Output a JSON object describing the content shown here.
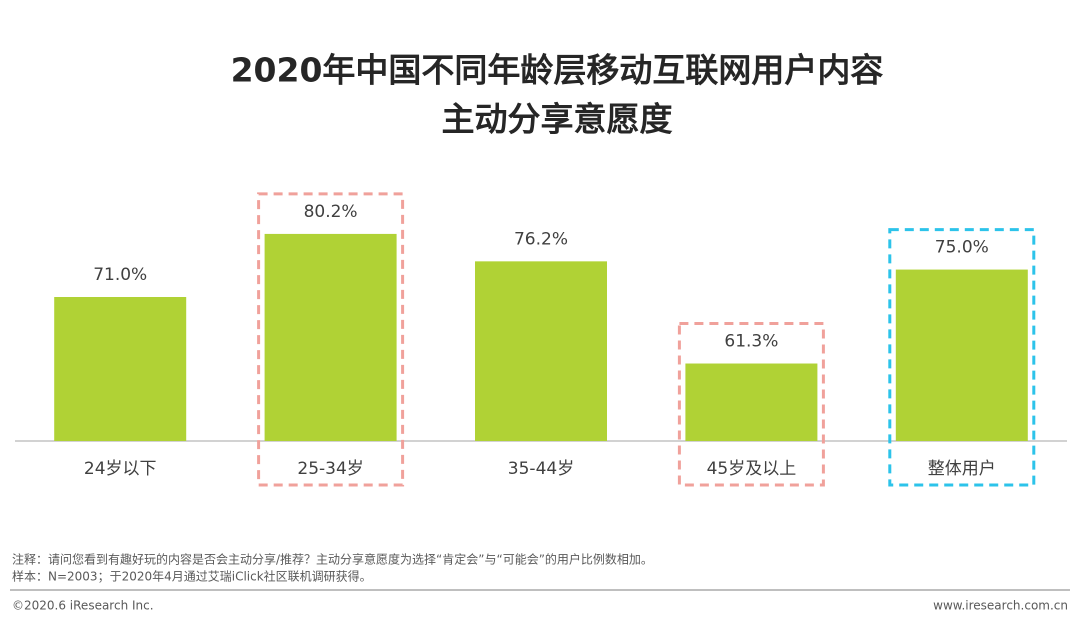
{
  "chart_data": {
    "type": "bar",
    "title": [
      "2020年中国不同年龄层移动互联网用户内容",
      "主动分享意愿度"
    ],
    "categories": [
      "24岁以下",
      "25-34岁",
      "35-44岁",
      "45岁及以上",
      "整体用户"
    ],
    "values": [
      71.0,
      80.2,
      76.2,
      61.3,
      75.0
    ],
    "value_labels": [
      "71.0%",
      "80.2%",
      "76.2%",
      "61.3%",
      "75.0%"
    ],
    "color": "#b0d235",
    "highlight": [
      null,
      "#f0a19b",
      null,
      "#f0a19b",
      "#2cc3ea"
    ],
    "ylim": [
      50,
      85
    ]
  },
  "notes": [
    "注释：请问您看到有趣好玩的内容是否会主动分享/推荐？主动分享意愿度为选择“肯定会”与“可能会”的用户比例数相加。",
    "样本：N=2003；于2020年4月通过艾瑞iClick社区联机调研获得。"
  ],
  "footer": {
    "copyright": "©2020.6 iResearch Inc.",
    "website": "www.iresearch.com.cn"
  }
}
